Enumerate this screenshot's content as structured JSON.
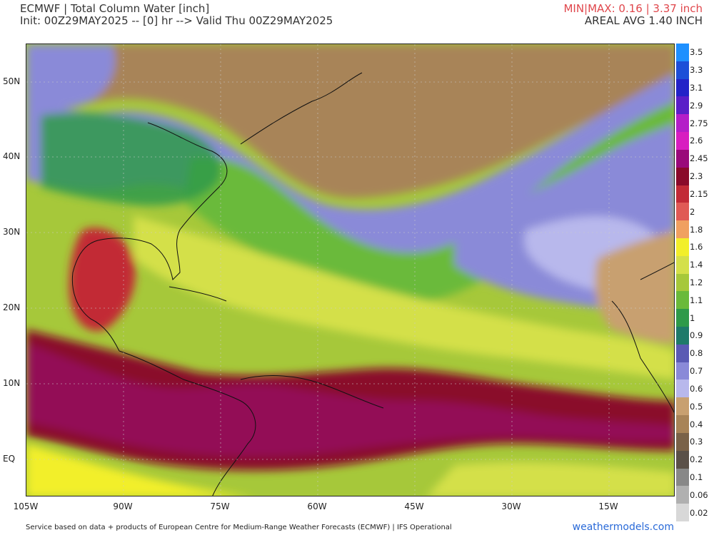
{
  "header": {
    "title": "ECMWF | Total Column Water [inch]",
    "init": "Init: 00Z29MAY2025 -- [0] hr --> Valid Thu 00Z29MAY2025",
    "minmax": "MIN|MAX: 0.16 | 3.37 inch",
    "areal_avg": "AREAL AVG 1.40 INCH"
  },
  "map": {
    "lat_labels": [
      "50N",
      "40N",
      "30N",
      "20N",
      "10N",
      "EQ"
    ],
    "lon_labels": [
      "105W",
      "90W",
      "75W",
      "60W",
      "45W",
      "30W",
      "15W"
    ]
  },
  "scale": {
    "labels": [
      "3.5",
      "3.3",
      "3.1",
      "2.9",
      "2.75",
      "2.6",
      "2.45",
      "2.3",
      "2.15",
      "2",
      "1.8",
      "1.6",
      "1.4",
      "1.2",
      "1.1",
      "1",
      "0.9",
      "0.8",
      "0.7",
      "0.6",
      "0.5",
      "0.4",
      "0.3",
      "0.2",
      "0.1",
      "0.06",
      "0.02"
    ],
    "colors": [
      "#1e90ff",
      "#1c4fd8",
      "#2323c8",
      "#5a1fc8",
      "#b41ec8",
      "#d81ec0",
      "#9a0a7a",
      "#8a0a2a",
      "#c22a36",
      "#e05a55",
      "#f0a060",
      "#f2ef2a",
      "#d4e04a",
      "#a6c83a",
      "#6aba3a",
      "#2e9a4a",
      "#1e7a6a",
      "#5a5ab4",
      "#8a8ad8",
      "#b8b8ec",
      "#c8a070",
      "#a88458",
      "#7a6248",
      "#5a5048",
      "#888888",
      "#b0b0b0",
      "#d8d8d8"
    ]
  },
  "footer": {
    "source": "Service based on data + products of European Centre for Medium-Range Weather Forecasts (ECMWF) | IFS Operational",
    "site": "weathermodels.com"
  }
}
